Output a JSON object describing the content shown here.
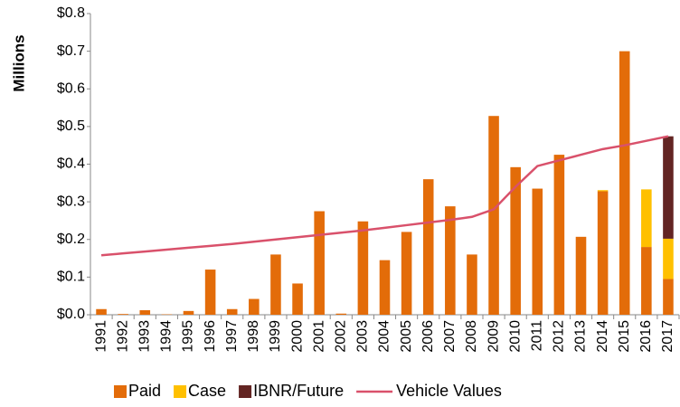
{
  "chart_data": {
    "type": "bar",
    "stacked": true,
    "ylabel": "Millions",
    "categories": [
      "1991",
      "1992",
      "1993",
      "1994",
      "1995",
      "1996",
      "1997",
      "1998",
      "1999",
      "2000",
      "2001",
      "2002",
      "2003",
      "2004",
      "2005",
      "2006",
      "2007",
      "2008",
      "2009",
      "2010",
      "2011",
      "2012",
      "2013",
      "2014",
      "2015",
      "2016",
      "2017"
    ],
    "series": [
      {
        "name": "Paid",
        "color": "#e36c09",
        "values": [
          0.015,
          0.002,
          0.012,
          0.001,
          0.01,
          0.12,
          0.015,
          0.042,
          0.16,
          0.083,
          0.275,
          0.003,
          0.248,
          0.145,
          0.22,
          0.36,
          0.288,
          0.16,
          0.528,
          0.392,
          0.335,
          0.425,
          0.207,
          0.328,
          0.7,
          0.18,
          0.095
        ]
      },
      {
        "name": "Case",
        "color": "#ffc000",
        "values": [
          0,
          0,
          0,
          0,
          0,
          0,
          0,
          0,
          0,
          0,
          0,
          0,
          0,
          0,
          0,
          0,
          0,
          0,
          0,
          0,
          0,
          0,
          0,
          0.003,
          0,
          0.153,
          0.107
        ]
      },
      {
        "name": "IBNR/Future",
        "color": "#632523",
        "values": [
          0,
          0,
          0,
          0,
          0,
          0,
          0,
          0,
          0,
          0,
          0,
          0,
          0,
          0,
          0,
          0,
          0,
          0,
          0,
          0,
          0,
          0,
          0,
          0,
          0,
          0,
          0.272
        ]
      },
      {
        "name": "Vehicle Values",
        "type": "line",
        "color": "#d9516b",
        "values": [
          0.158,
          0.163,
          0.168,
          0.173,
          0.178,
          0.183,
          0.188,
          0.194,
          0.2,
          0.206,
          0.212,
          0.218,
          0.224,
          0.231,
          0.238,
          0.245,
          0.252,
          0.26,
          0.28,
          0.34,
          0.395,
          0.41,
          0.425,
          0.44,
          0.45,
          0.462,
          0.474
        ]
      }
    ],
    "ylim": [
      0,
      0.8
    ],
    "yticks": [
      {
        "value": 0,
        "label": "$0.0"
      },
      {
        "value": 0.1,
        "label": "$0.1"
      },
      {
        "value": 0.2,
        "label": "$0.2"
      },
      {
        "value": 0.3,
        "label": "$0.3"
      },
      {
        "value": 0.4,
        "label": "$0.4"
      },
      {
        "value": 0.5,
        "label": "$0.5"
      },
      {
        "value": 0.6,
        "label": "$0.6"
      },
      {
        "value": 0.7,
        "label": "$0.7"
      },
      {
        "value": 0.8,
        "label": "$0.8"
      }
    ],
    "grid": false,
    "legend": "bottom"
  }
}
